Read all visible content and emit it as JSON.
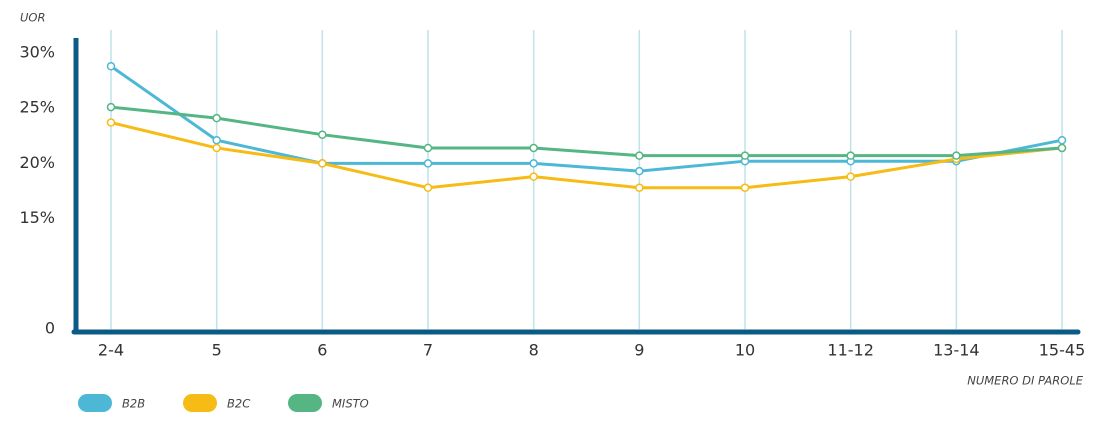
{
  "chart_data": {
    "type": "line",
    "y_label": "UOR",
    "x_label": "NUMERO DI PAROLE",
    "categories": [
      "2-4",
      "5",
      "6",
      "7",
      "8",
      "9",
      "10",
      "11-12",
      "13-14",
      "15-45"
    ],
    "series": [
      {
        "name": "B2B",
        "color": "#4cb8d6",
        "values": [
          28.8,
          22.1,
          20,
          20,
          20,
          19.3,
          20.2,
          20.2,
          20.2,
          22.1
        ]
      },
      {
        "name": "B2C",
        "color": "#f7bb15",
        "values": [
          23.7,
          21.4,
          20,
          17.8,
          18.8,
          17.8,
          17.8,
          18.8,
          20.4,
          21.4
        ]
      },
      {
        "name": "MISTO",
        "color": "#55b684",
        "values": [
          25.1,
          24.1,
          22.6,
          21.4,
          21.4,
          20.7,
          20.7,
          20.7,
          20.7,
          21.4
        ]
      }
    ],
    "ylim": [
      0,
      30
    ],
    "ybreak": [
      0,
      10
    ],
    "yticks": [
      0,
      {
        "value": 15,
        "label": "15%"
      },
      {
        "value": 20,
        "label": "20%"
      },
      {
        "value": 25,
        "label": "25%"
      },
      {
        "value": 30,
        "label": "30%"
      }
    ],
    "grid": "x",
    "axis_color": "#0b5b86",
    "grid_color": "#bfe3ea"
  }
}
